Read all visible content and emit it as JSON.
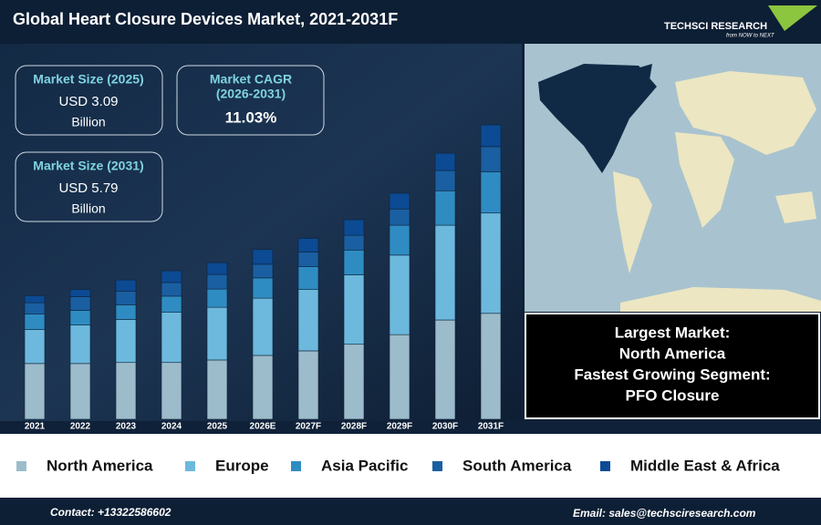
{
  "header": {
    "title": "Global Heart Closure Devices Market, 2021-2031F",
    "logo": "TECHSCI RESEARCH",
    "tagline": "from NOW to NEXT"
  },
  "stats": [
    {
      "label": "Market Size (2025)",
      "value": "USD 3.09",
      "unit": "Billion"
    },
    {
      "label": "Market CAGR",
      "sublabel": "(2026-2031)",
      "value": "11.03%"
    },
    {
      "label": "Market Size (2031)",
      "value": "USD 5.79",
      "unit": "Billion"
    }
  ],
  "callout": {
    "line1": "Largest Market:",
    "line2": "North America",
    "line3": "Fastest Growing Segment:",
    "line4": "PFO Closure"
  },
  "chart_data": {
    "type": "bar",
    "stacked": true,
    "categories": [
      "2021",
      "2022",
      "2023",
      "2024",
      "2025",
      "2026E",
      "2027F",
      "2028F",
      "2029F",
      "2030F",
      "2031F"
    ],
    "series": [
      {
        "name": "North America",
        "color": "#9dbccb",
        "values": [
          1.1,
          1.1,
          1.12,
          1.12,
          1.17,
          1.26,
          1.35,
          1.48,
          1.67,
          1.96,
          2.09
        ]
      },
      {
        "name": "Europe",
        "color": "#6cb9dd",
        "values": [
          0.67,
          0.76,
          0.85,
          0.99,
          1.04,
          1.13,
          1.21,
          1.37,
          1.57,
          1.87,
          1.98
        ]
      },
      {
        "name": "Asia Pacific",
        "color": "#2f8cc2",
        "values": [
          0.31,
          0.29,
          0.29,
          0.32,
          0.36,
          0.4,
          0.45,
          0.49,
          0.59,
          0.68,
          0.81
        ]
      },
      {
        "name": "South America",
        "color": "#1a5fa1",
        "values": [
          0.22,
          0.27,
          0.27,
          0.27,
          0.29,
          0.27,
          0.29,
          0.29,
          0.32,
          0.4,
          0.5
        ]
      },
      {
        "name": "Middle East & Africa",
        "color": "#0c4a93",
        "values": [
          0.14,
          0.14,
          0.22,
          0.23,
          0.23,
          0.29,
          0.27,
          0.31,
          0.31,
          0.34,
          0.43
        ]
      }
    ]
  },
  "footer": {
    "contact": "Contact: +13322586602",
    "email": "Email: sales@techsciresearch.com"
  }
}
